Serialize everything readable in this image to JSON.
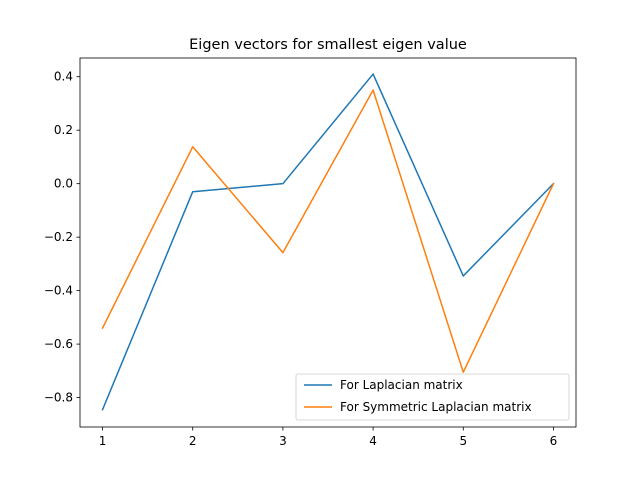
{
  "chart_data": {
    "type": "line",
    "title": "Eigen vectors for smallest eigen value",
    "xlabel": "",
    "ylabel": "",
    "x": [
      1,
      2,
      3,
      4,
      5,
      6
    ],
    "xlim": [
      0.75,
      6.25
    ],
    "ylim": [
      -0.91,
      0.47
    ],
    "xticks": [
      1,
      2,
      3,
      4,
      5,
      6
    ],
    "yticks": [
      0.4,
      0.2,
      0.0,
      -0.2,
      -0.4,
      -0.6,
      -0.8
    ],
    "ytick_labels": [
      "0.4",
      "0.2",
      "0.0",
      "−0.2",
      "−0.4",
      "−0.6",
      "−0.8"
    ],
    "grid": false,
    "legend_position": "lower-right",
    "series": [
      {
        "name": "For Laplacian matrix",
        "color": "#1f77b4",
        "values": [
          -0.845,
          -0.03,
          0.0,
          0.41,
          -0.345,
          0.0
        ]
      },
      {
        "name": "For Symmetric Laplacian matrix",
        "color": "#ff7f0e",
        "values": [
          -0.54,
          0.138,
          -0.258,
          0.35,
          -0.705,
          0.0
        ]
      }
    ]
  }
}
